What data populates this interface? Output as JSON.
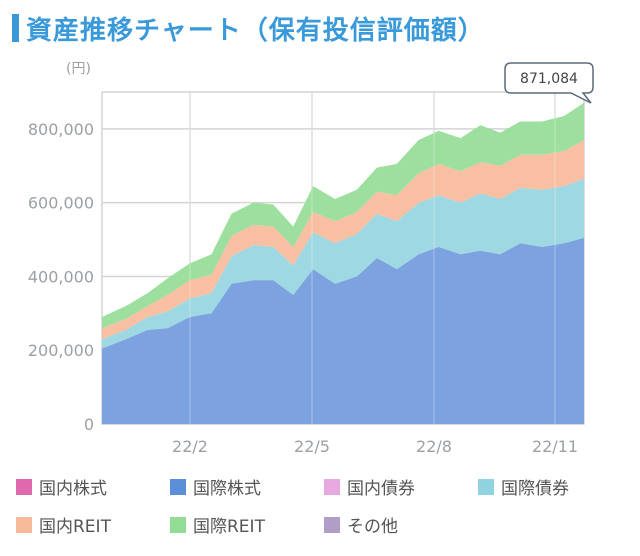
{
  "header": {
    "title": "資産推移チャート（保有投信評価額）"
  },
  "unit_label": "(円)",
  "tooltip": {
    "value": "871,084"
  },
  "legend": [
    {
      "label": "国内株式",
      "color": "#e069ad"
    },
    {
      "label": "国際株式",
      "color": "#5b8ed9"
    },
    {
      "label": "国内債券",
      "color": "#e8a8e0"
    },
    {
      "label": "国際債券",
      "color": "#8ed3df"
    },
    {
      "label": "国内REIT",
      "color": "#f7b998"
    },
    {
      "label": "国際REIT",
      "color": "#92dc96"
    },
    {
      "label": "その他",
      "color": "#b09ec9"
    }
  ],
  "chart_data": {
    "type": "area",
    "stacked": true,
    "x_ticks": [
      "22/2",
      "22/5",
      "22/8",
      "22/11"
    ],
    "ylim": [
      0,
      900000
    ],
    "y_ticks": [
      0,
      200000,
      400000,
      600000,
      800000
    ],
    "y_tick_labels": [
      "0",
      "200,000",
      "400,000",
      "600,000",
      "800,000"
    ],
    "grid": true,
    "legend_position": "bottom",
    "x_points": [
      0,
      12,
      23,
      33,
      44,
      55,
      65,
      76,
      86,
      96,
      106,
      117,
      128,
      138,
      148,
      159,
      169,
      180,
      190,
      200,
      210,
      221,
      232,
      242
    ],
    "series": [
      {
        "name": "国際株式",
        "color": "#7da2e0",
        "values": [
          205000,
          230000,
          255000,
          260000,
          290000,
          300000,
          380000,
          390000,
          390000,
          350000,
          420000,
          380000,
          400000,
          450000,
          420000,
          460000,
          480000,
          460000,
          470000,
          460000,
          490000,
          480000,
          490000,
          505000
        ]
      },
      {
        "name": "国際債券",
        "color": "#9ed8e2",
        "values": [
          25000,
          25000,
          35000,
          45000,
          50000,
          55000,
          75000,
          95000,
          90000,
          80000,
          100000,
          110000,
          115000,
          120000,
          130000,
          140000,
          140000,
          140000,
          155000,
          150000,
          150000,
          155000,
          155000,
          160000
        ]
      },
      {
        "name": "国内REIT",
        "color": "#f8bfa3",
        "values": [
          30000,
          30000,
          30000,
          45000,
          50000,
          50000,
          55000,
          55000,
          55000,
          50000,
          55000,
          60000,
          60000,
          60000,
          70000,
          80000,
          85000,
          85000,
          85000,
          90000,
          90000,
          95000,
          95000,
          105000
        ]
      },
      {
        "name": "国際REIT",
        "color": "#9ddf9e",
        "values": [
          30000,
          35000,
          35000,
          45000,
          45000,
          55000,
          60000,
          60000,
          60000,
          55000,
          70000,
          60000,
          60000,
          65000,
          85000,
          90000,
          90000,
          90000,
          100000,
          90000,
          90000,
          90000,
          95000,
          101084
        ]
      }
    ]
  }
}
